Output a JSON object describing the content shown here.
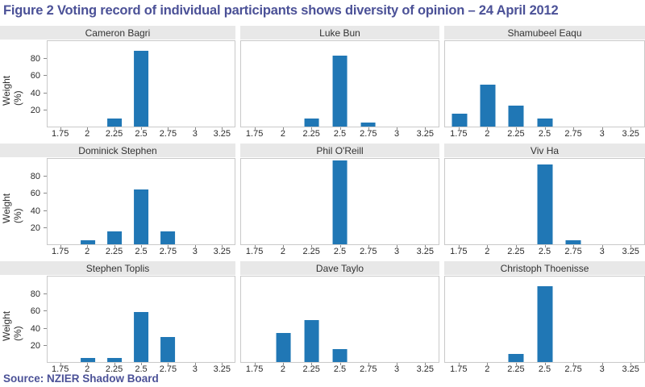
{
  "figure": {
    "title": "Figure 2 Voting record of individual participants shows diversity of opinion – 24 April 2012",
    "source": "Source: NZIER Shadow Board"
  },
  "colors": {
    "heading": "#4b5197",
    "bar": "#2077b5",
    "strip_bg": "#e8e8e8",
    "plot_border": "#c9c9c9",
    "axis_text": "#2b2b2b"
  },
  "axis": {
    "ylabel": "Weight (%)",
    "yticks": [
      20,
      40,
      60,
      80
    ],
    "ylim": [
      0,
      100
    ],
    "xticks": [
      "1.75",
      "2",
      "2.25",
      "2.5",
      "2.75",
      "3",
      "3.25"
    ]
  },
  "chart_data": [
    {
      "type": "bar",
      "title": "Cameron Bagri",
      "categories": [
        "1.75",
        "2",
        "2.25",
        "2.5",
        "2.75",
        "3",
        "3.25"
      ],
      "values": [
        0,
        0,
        10,
        90,
        0,
        0,
        0
      ],
      "ylabel": "Weight (%)",
      "ylim": [
        0,
        100
      ]
    },
    {
      "type": "bar",
      "title": "Luke Bun",
      "categories": [
        "1.75",
        "2",
        "2.25",
        "2.5",
        "2.75",
        "3",
        "3.25"
      ],
      "values": [
        0,
        0,
        10,
        85,
        5,
        0,
        0
      ],
      "ylabel": "Weight (%)",
      "ylim": [
        0,
        100
      ]
    },
    {
      "type": "bar",
      "title": "Shamubeel Eaqu",
      "categories": [
        "1.75",
        "2",
        "2.25",
        "2.5",
        "2.75",
        "3",
        "3.25"
      ],
      "values": [
        15,
        50,
        25,
        10,
        0,
        0,
        0
      ],
      "ylabel": "Weight (%)",
      "ylim": [
        0,
        100
      ]
    },
    {
      "type": "bar",
      "title": "Dominick Stephen",
      "categories": [
        "1.75",
        "2",
        "2.25",
        "2.5",
        "2.75",
        "3",
        "3.25"
      ],
      "values": [
        0,
        5,
        15,
        65,
        15,
        0,
        0
      ],
      "ylabel": "Weight (%)",
      "ylim": [
        0,
        100
      ]
    },
    {
      "type": "bar",
      "title": "Phil O'Reill",
      "categories": [
        "1.75",
        "2",
        "2.25",
        "2.5",
        "2.75",
        "3",
        "3.25"
      ],
      "values": [
        0,
        0,
        0,
        100,
        0,
        0,
        0
      ],
      "ylabel": "Weight (%)",
      "ylim": [
        0,
        100
      ]
    },
    {
      "type": "bar",
      "title": "Viv Ha",
      "categories": [
        "1.75",
        "2",
        "2.25",
        "2.5",
        "2.75",
        "3",
        "3.25"
      ],
      "values": [
        0,
        0,
        0,
        95,
        5,
        0,
        0
      ],
      "ylabel": "Weight (%)",
      "ylim": [
        0,
        100
      ]
    },
    {
      "type": "bar",
      "title": "Stephen Toplis",
      "categories": [
        "1.75",
        "2",
        "2.25",
        "2.5",
        "2.75",
        "3",
        "3.25"
      ],
      "values": [
        0,
        5,
        5,
        60,
        30,
        0,
        0
      ],
      "ylabel": "Weight (%)",
      "ylim": [
        0,
        100
      ]
    },
    {
      "type": "bar",
      "title": "Dave Taylo",
      "categories": [
        "1.75",
        "2",
        "2.25",
        "2.5",
        "2.75",
        "3",
        "3.25"
      ],
      "values": [
        0,
        35,
        50,
        15,
        0,
        0,
        0
      ],
      "ylabel": "Weight (%)",
      "ylim": [
        0,
        100
      ]
    },
    {
      "type": "bar",
      "title": "Christoph Thoenisse",
      "categories": [
        "1.75",
        "2",
        "2.25",
        "2.5",
        "2.75",
        "3",
        "3.25"
      ],
      "values": [
        0,
        0,
        10,
        90,
        0,
        0,
        0
      ],
      "ylabel": "Weight (%)",
      "ylim": [
        0,
        100
      ]
    }
  ]
}
